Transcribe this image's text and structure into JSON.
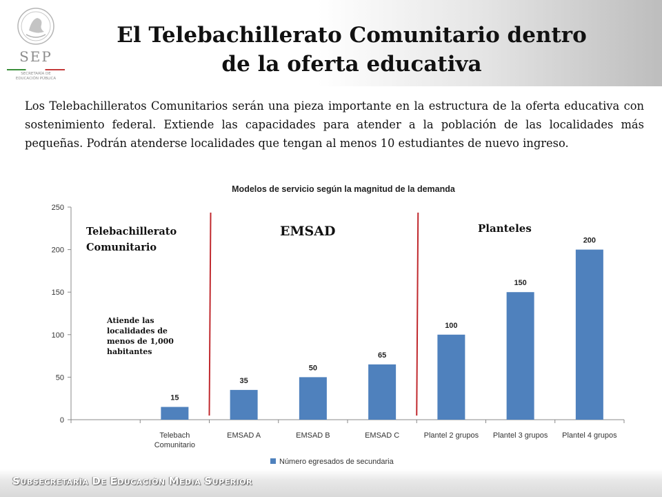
{
  "header": {
    "logo": {
      "name": "SEP",
      "subtitle_line1": "SECRETARÍA DE",
      "subtitle_line2": "EDUCACIÓN PÚBLICA"
    },
    "title_line1": "El Telebachillerato Comunitario dentro",
    "title_line2": "de la oferta educativa"
  },
  "intro": "Los Telebachilleratos Comunitarios serán una pieza importante en la estructura de la oferta educativa con sostenimiento federal. Extiende las capacidades para atender a la población de las localidades más pequeñas. Podrán atenderse localidades que tengan al menos 10 estudiantes de nuevo ingreso.",
  "chart_data": {
    "type": "bar",
    "title": "Modelos de servicio según la magnitud de la demanda",
    "categories": [
      "",
      "Telebach Comunitario",
      "EMSAD A",
      "EMSAD B",
      "EMSAD C",
      "Plantel 2 grupos",
      "Plantel 3 grupos",
      "Plantel 4 grupos"
    ],
    "series": [
      {
        "name": "Número egresados de secundaria",
        "values": [
          null,
          15,
          35,
          50,
          65,
          100,
          150,
          200
        ]
      }
    ],
    "ylim": [
      0,
      250
    ],
    "yticks": [
      0,
      50,
      100,
      150,
      200,
      250
    ],
    "bar_color": "#4f81bd",
    "divider_color": "#c0282d",
    "legend_position": "bottom",
    "annotations": {
      "group1": "Telebachillerato Comunitario",
      "group2": "EMSAD",
      "group3": "Planteles",
      "note": "Atiende las localidades de menos de 1,000 habitantes"
    }
  },
  "footer": {
    "text": "Subsecretaría de Educación Media Superior"
  }
}
